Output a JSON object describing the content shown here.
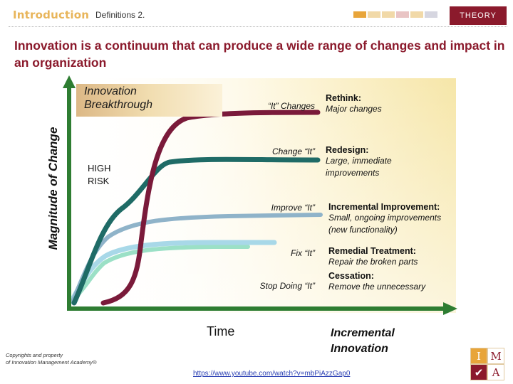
{
  "header": {
    "section": "Introduction",
    "breadcrumb": "Definitions 2.",
    "progress_colors": [
      "#e8a53a",
      "#f1d9a8",
      "#f1d9a8",
      "#e9c4c4",
      "#f1d9a8",
      "#d6d6e0"
    ],
    "badge": "THEORY"
  },
  "headline": "Innovation is a continuum that can produce a wide range of changes and impact in an organization",
  "diagram": {
    "y_axis_label": "Magnitude of Change",
    "x_axis_label": "Time",
    "breakthrough_label": [
      "Innovation",
      "Breakthrough"
    ],
    "risk_label": [
      "HIGH",
      "RISK"
    ],
    "incremental_label": [
      "Incremental",
      "Innovation"
    ],
    "levels": [
      {
        "curve_label": "“It” Changes",
        "heading": "Rethink:",
        "heading_bold": true,
        "description": [
          "Major changes"
        ],
        "color": "#7a1a3a"
      },
      {
        "curve_label": "Change “It”",
        "heading": "Redesign:",
        "heading_bold": true,
        "description": [
          "Large, immediate",
          "improvements"
        ],
        "color": "#1f6b66"
      },
      {
        "curve_label": "Improve “It”",
        "heading": "Incremental Improvement:",
        "heading_bold": true,
        "description": [
          "Small, ongoing improvements",
          "(new functionality)"
        ],
        "color": "#8fb3c9"
      },
      {
        "curve_label": "Fix “It”",
        "heading": "Remedial Treatment:",
        "heading_bold": true,
        "description": [
          "Repair the broken parts"
        ],
        "color": "#a8d8e8"
      },
      {
        "curve_label": "Stop Doing “It”",
        "heading": "Cessation:",
        "heading_bold": true,
        "description": [
          "Remove the unnecessary"
        ],
        "color": "#9be0c6"
      }
    ],
    "axis_color": "#2e7d32"
  },
  "footer": {
    "copyright": [
      "Copyrights and property",
      "of Innovation Management Academy®"
    ],
    "link": "https://www.youtube.com/watch?v=mbPiAzzGap0",
    "logo_letters": [
      "I",
      "M",
      "✔",
      "A"
    ],
    "logo_colors": [
      "#e8a53a",
      "#ffffff",
      "#8b1a2c",
      "#ffffff"
    ]
  }
}
